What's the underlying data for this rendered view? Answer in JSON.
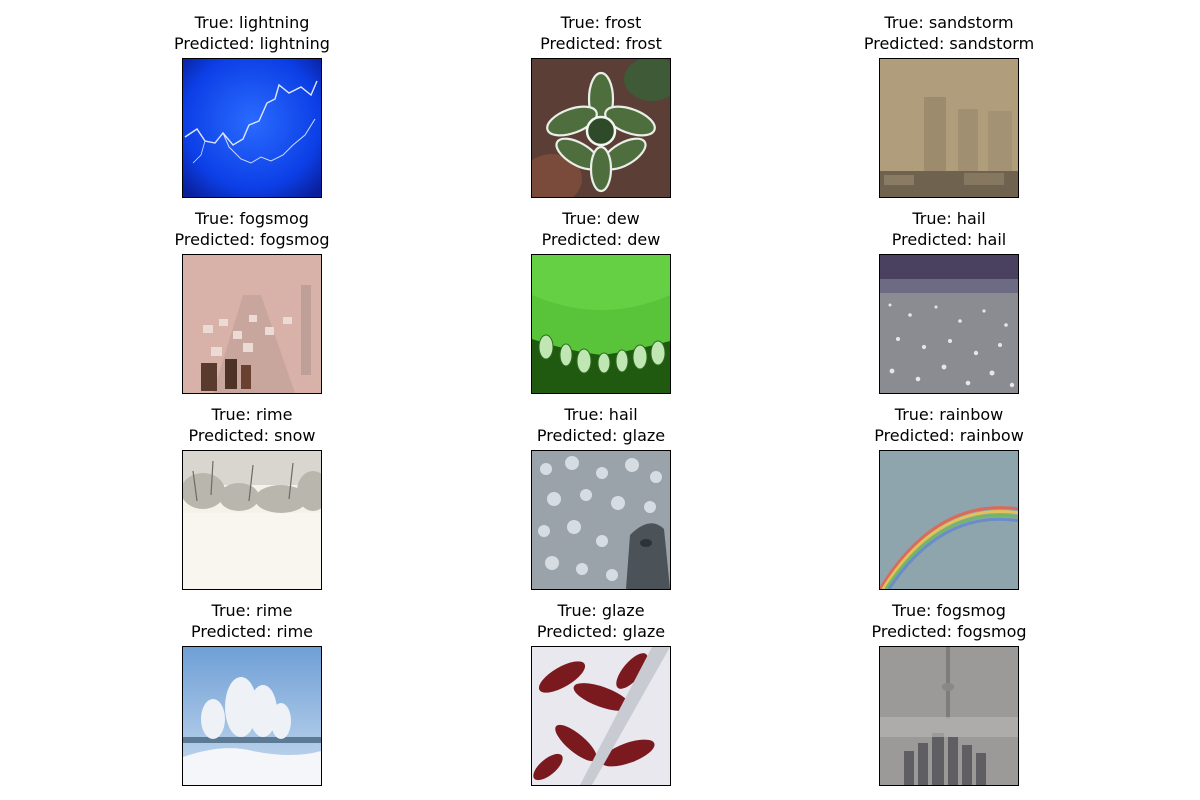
{
  "panels": [
    {
      "true_label": "True: lightning",
      "predicted_label": "Predicted: lightning"
    },
    {
      "true_label": "True: frost",
      "predicted_label": "Predicted: frost"
    },
    {
      "true_label": "True: sandstorm",
      "predicted_label": "Predicted: sandstorm"
    },
    {
      "true_label": "True: fogsmog",
      "predicted_label": "Predicted: fogsmog"
    },
    {
      "true_label": "True: dew",
      "predicted_label": "Predicted: dew"
    },
    {
      "true_label": "True: hail",
      "predicted_label": "Predicted: hail"
    },
    {
      "true_label": "True: rime",
      "predicted_label": "Predicted: snow"
    },
    {
      "true_label": "True: hail",
      "predicted_label": "Predicted: glaze"
    },
    {
      "true_label": "True: rainbow",
      "predicted_label": "Predicted: rainbow"
    },
    {
      "true_label": "True: rime",
      "predicted_label": "Predicted: rime"
    },
    {
      "true_label": "True: glaze",
      "predicted_label": "Predicted: glaze"
    },
    {
      "true_label": "True: fogsmog",
      "predicted_label": "Predicted: fogsmog"
    }
  ]
}
